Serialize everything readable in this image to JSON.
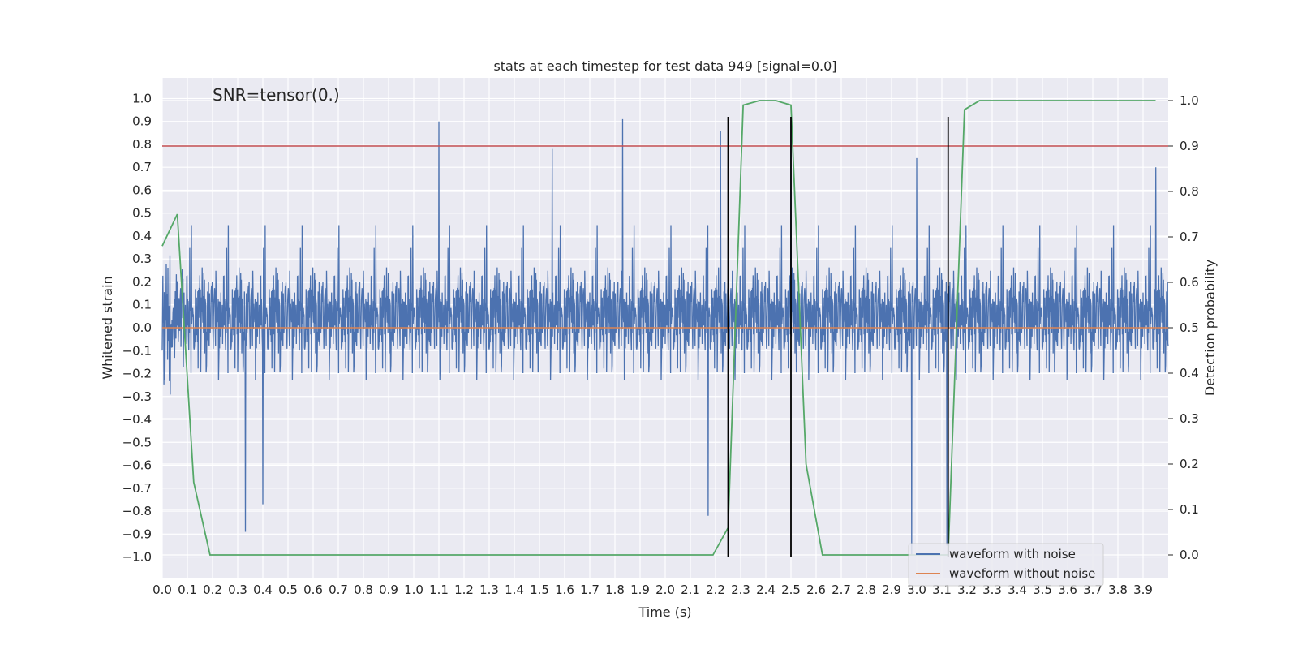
{
  "chart_data": {
    "type": "line",
    "title": "stats at each timestep for test data 949 [signal=0.0]",
    "annotation": "SNR=tensor(0.)",
    "xlabel": "Time (s)",
    "ylabel": "Whitened strain",
    "y2label": "Detection probability",
    "xlim": [
      0.0,
      4.0
    ],
    "ylim": [
      -1.09,
      1.09
    ],
    "y2lim": [
      -0.05,
      1.05
    ],
    "xticks": [
      "0.0",
      "0.1",
      "0.2",
      "0.3",
      "0.4",
      "0.5",
      "0.6",
      "0.7",
      "0.8",
      "0.9",
      "1.0",
      "1.1",
      "1.2",
      "1.3",
      "1.4",
      "1.5",
      "1.6",
      "1.7",
      "1.8",
      "1.9",
      "2.0",
      "2.1",
      "2.2",
      "2.3",
      "2.4",
      "2.5",
      "2.6",
      "2.7",
      "2.8",
      "2.9",
      "3.0",
      "3.1",
      "3.2",
      "3.3",
      "3.4",
      "3.5",
      "3.6",
      "3.7",
      "3.8",
      "3.9"
    ],
    "yticks": [
      "1.0",
      "0.9",
      "0.8",
      "0.7",
      "0.6",
      "0.5",
      "0.4",
      "0.3",
      "0.2",
      "0.1",
      "0.0",
      "−0.1",
      "−0.2",
      "−0.3",
      "−0.4",
      "−0.5",
      "−0.6",
      "−0.7",
      "−0.8",
      "−0.9",
      "−1.0"
    ],
    "y2ticks": [
      "1.0",
      "0.9",
      "0.8",
      "0.7",
      "0.6",
      "0.5",
      "0.4",
      "0.3",
      "0.2",
      "0.1",
      "0.0"
    ],
    "grid": true,
    "legend_position": "lower-right",
    "colors": {
      "noise": "#4c72b0",
      "clean": "#dd8452",
      "prob": "#55a868",
      "threshold": "#c44e52",
      "marker": "#000000",
      "background": "#eaeaf2"
    },
    "series": [
      {
        "name": "waveform with noise",
        "kind": "noisy-strain",
        "amplitude_envelope": 0.55,
        "peaks": [
          {
            "x": 1.1,
            "y": 0.9
          },
          {
            "x": 1.55,
            "y": 0.78
          },
          {
            "x": 1.83,
            "y": 0.91
          },
          {
            "x": 2.22,
            "y": 0.86
          },
          {
            "x": 2.25,
            "y": 0.9
          },
          {
            "x": 2.5,
            "y": 0.9
          },
          {
            "x": 3.0,
            "y": 0.74
          },
          {
            "x": 3.95,
            "y": 0.7
          },
          {
            "x": 0.33,
            "y": -0.89
          },
          {
            "x": 0.4,
            "y": -0.77
          },
          {
            "x": 2.17,
            "y": -0.82
          },
          {
            "x": 2.98,
            "y": -0.99
          },
          {
            "x": 3.12,
            "y": -0.95
          }
        ]
      },
      {
        "name": "waveform without noise",
        "kind": "flat",
        "y": 0.0
      },
      {
        "name": "",
        "kind": "probability",
        "axis": "right",
        "x": [
          0.0,
          0.06,
          0.125,
          0.19,
          0.25,
          2.19,
          2.25,
          2.31,
          2.375,
          2.44,
          2.5,
          2.56,
          2.625,
          2.69,
          3.06,
          3.125,
          3.19,
          3.25,
          3.95
        ],
        "values": [
          0.68,
          0.75,
          0.16,
          0.0,
          0.0,
          0.0,
          0.06,
          0.99,
          1.0,
          1.0,
          0.99,
          0.2,
          0.0,
          0.0,
          0.0,
          0.0,
          0.98,
          1.0,
          1.0
        ]
      }
    ],
    "threshold": {
      "axis": "right",
      "value": 0.9
    },
    "vlines": [
      {
        "x": 2.25,
        "y_from": -1.0,
        "y_to": 0.92
      },
      {
        "x": 2.5,
        "y_from": -1.0,
        "y_to": 0.92
      },
      {
        "x": 3.125,
        "y_from": -1.0,
        "y_to": 0.92
      }
    ],
    "legend": [
      "waveform with noise",
      "waveform without noise"
    ]
  }
}
